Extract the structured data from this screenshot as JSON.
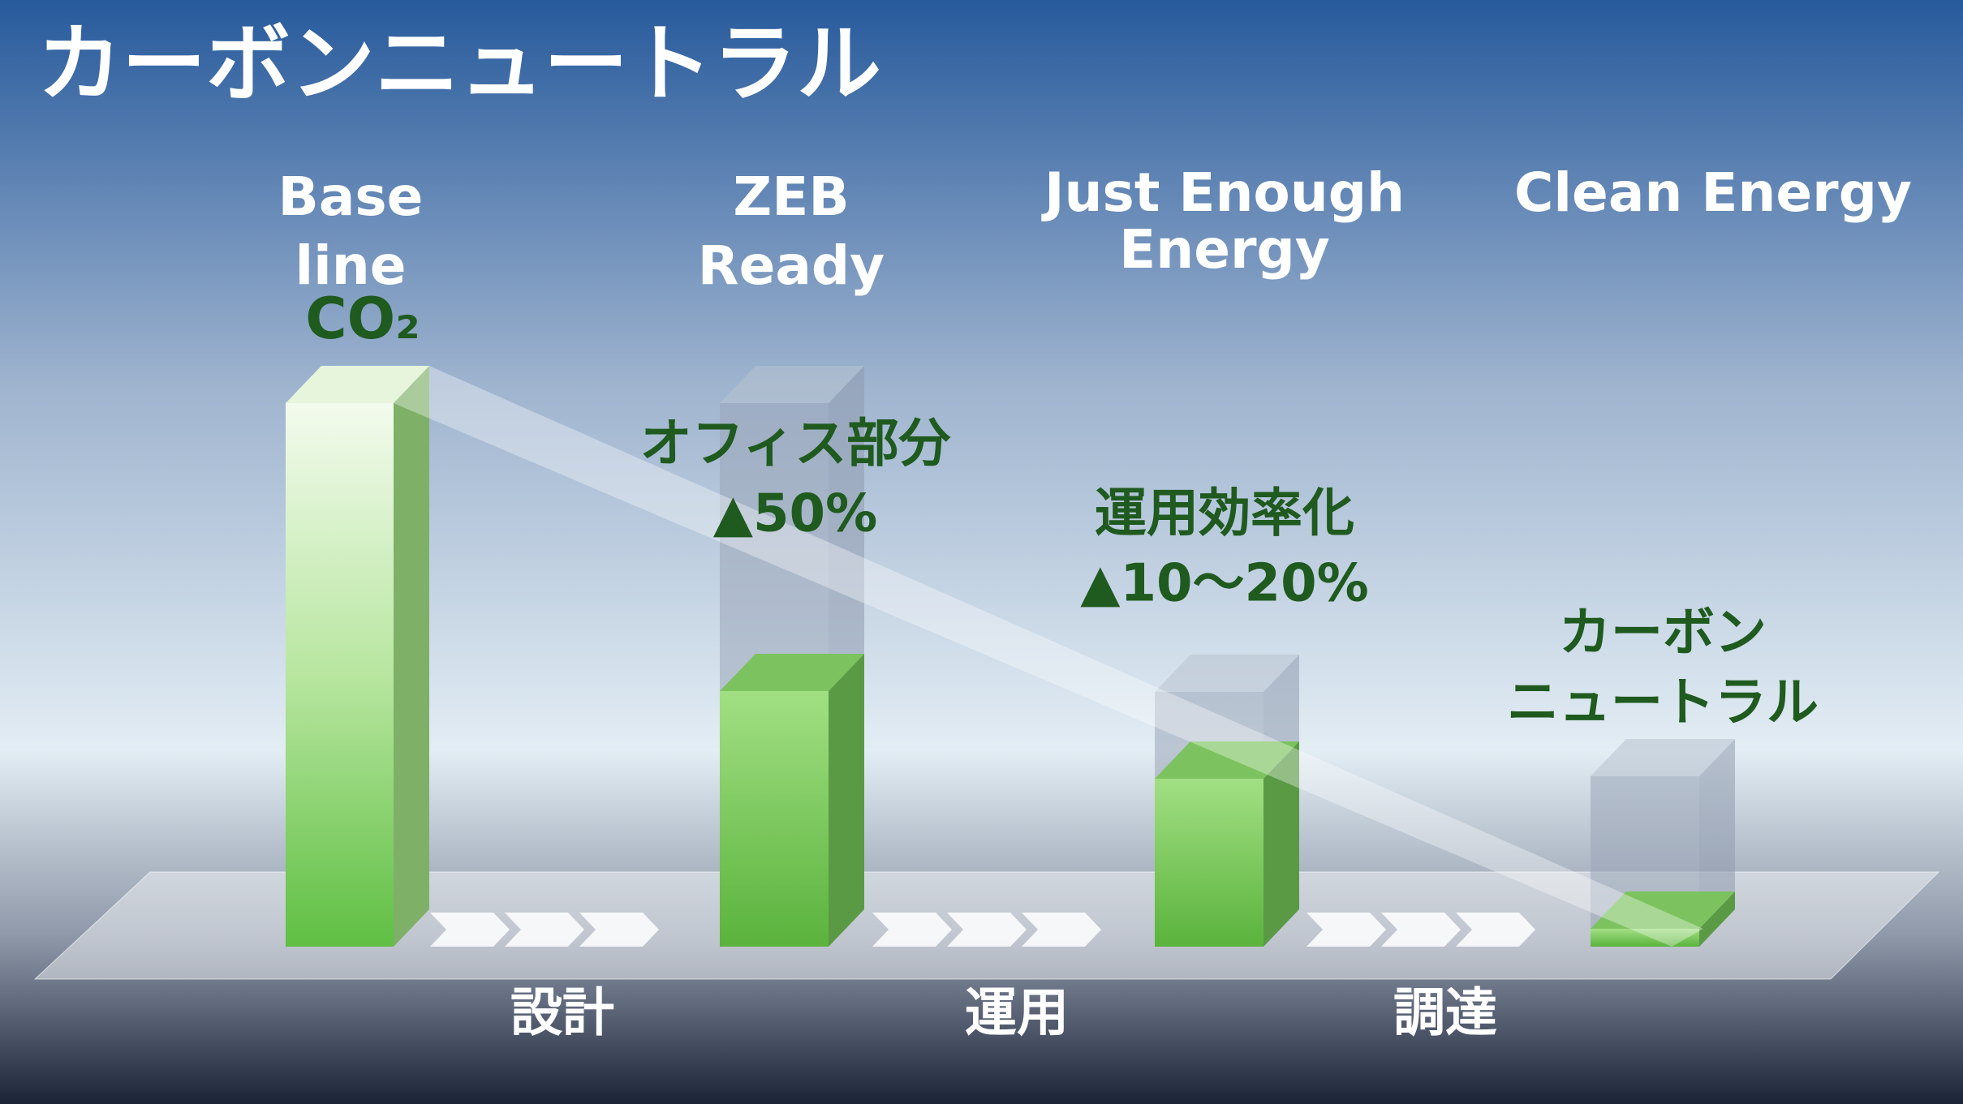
{
  "title": "カーボンニュートラル",
  "stages": [
    {
      "lines": [
        "Base",
        "line"
      ]
    },
    {
      "lines": [
        "ZEB",
        "Ready"
      ]
    },
    {
      "lines": [
        "Just Enough",
        "Energy"
      ]
    },
    {
      "lines": [
        "Clean Energy"
      ]
    }
  ],
  "co2_label": "CO₂",
  "annotations": [
    {
      "lines": [
        "オフィス部分",
        "▲50%"
      ]
    },
    {
      "lines": [
        "運用効率化",
        "▲10～20%"
      ]
    },
    {
      "lines": [
        "カーボン",
        "ニュートラル"
      ]
    }
  ],
  "steps": [
    "設計",
    "運用",
    "調達"
  ]
}
